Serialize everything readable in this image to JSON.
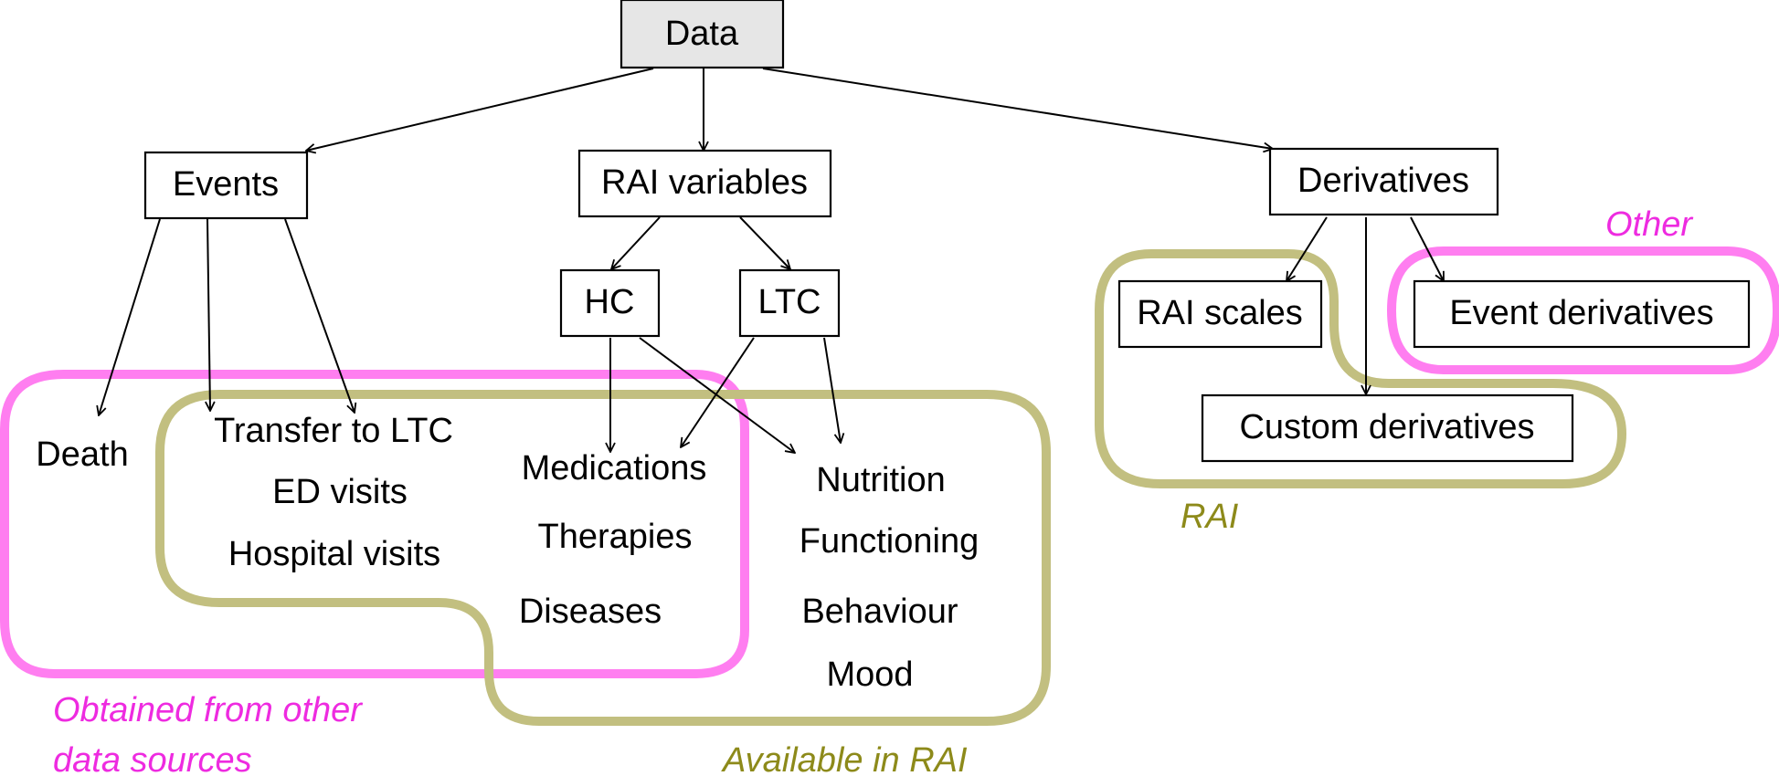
{
  "nodes": {
    "data": "Data",
    "events": "Events",
    "rai_variables": "RAI variables",
    "derivatives": "Derivatives",
    "hc": "HC",
    "ltc": "LTC",
    "rai_scales": "RAI scales",
    "event_derivatives": "Event derivatives",
    "custom_derivatives": "Custom derivatives"
  },
  "leaves": {
    "death": "Death",
    "transfer_to_ltc": "Transfer to LTC",
    "ed_visits": "ED visits",
    "hospital_visits": "Hospital visits",
    "medications": "Medications",
    "therapies": "Therapies",
    "diseases": "Diseases",
    "nutrition": "Nutrition",
    "functioning": "Functioning",
    "behaviour": "Behaviour",
    "mood": "Mood"
  },
  "region_labels": {
    "obtained_line1": "Obtained from other",
    "obtained_line2": "data sources",
    "available_in_rai": "Available in RAI",
    "rai": "RAI",
    "other": "Other"
  },
  "colors": {
    "pink": "#ff7ef0",
    "pink_text": "#ee2be0",
    "olive": "#c2bf80",
    "olive_text": "#8d8a1a",
    "root_fill": "#e6e6e6"
  }
}
